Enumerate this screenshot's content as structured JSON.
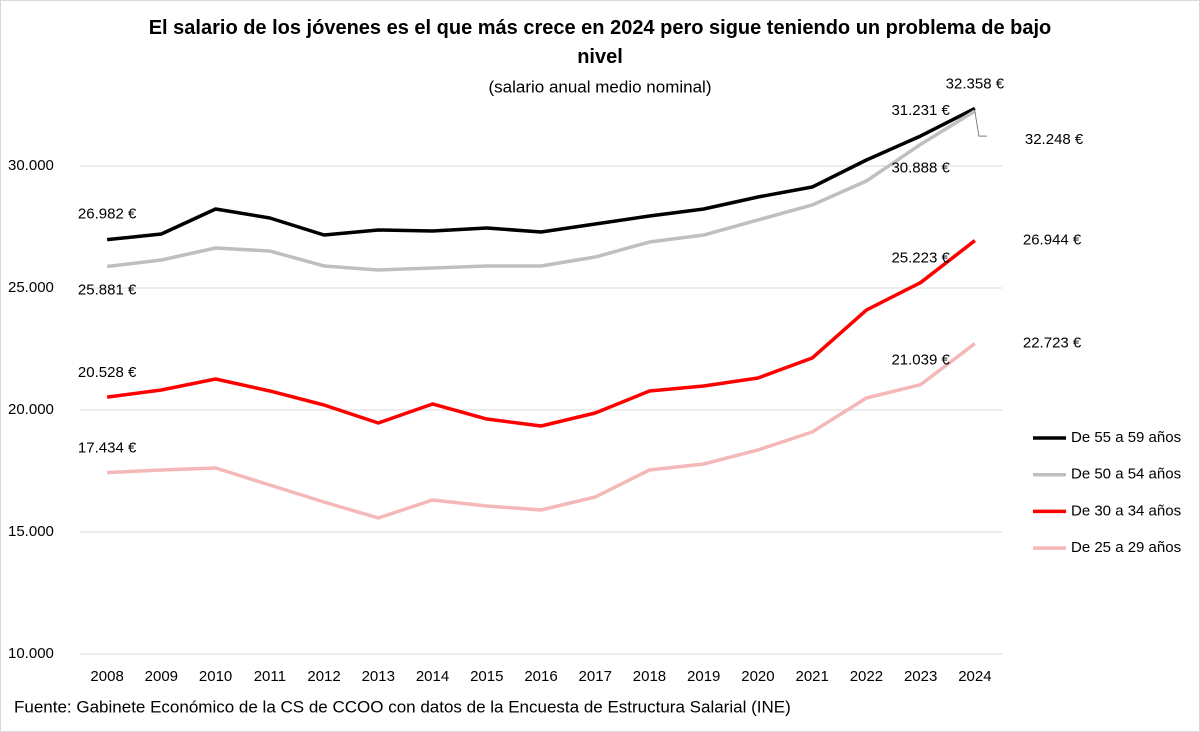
{
  "chart_data": {
    "type": "line",
    "title": "El salario de los jóvenes es el que más crece en 2024 pero sigue teniendo un problema de bajo nivel",
    "subtitle": "(salario anual medio nominal)",
    "source": "Fuente: Gabinete Económico de la CS de CCOO con datos de la Encuesta de Estructura Salarial (INE)",
    "categories": [
      "2008",
      "2009",
      "2010",
      "2011",
      "2012",
      "2013",
      "2014",
      "2015",
      "2016",
      "2017",
      "2018",
      "2019",
      "2020",
      "2021",
      "2022",
      "2023",
      "2024"
    ],
    "ylim": [
      10000,
      35000
    ],
    "yticks": [
      {
        "value": 10000,
        "label": "10.000"
      },
      {
        "value": 15000,
        "label": "15.000"
      },
      {
        "value": 20000,
        "label": "20.000"
      },
      {
        "value": 25000,
        "label": "25.000"
      },
      {
        "value": 30000,
        "label": "30.000"
      }
    ],
    "grid": true,
    "legend": "right",
    "series": [
      {
        "name": "De 55 a 59 años",
        "color": "#000000",
        "values": [
          26982,
          27213,
          28238,
          27869,
          27172,
          27377,
          27336,
          27459,
          27295,
          27623,
          27951,
          28238,
          28730,
          29139,
          30246,
          31231,
          32358
        ],
        "value_labels": [
          "26.982 €",
          null,
          null,
          null,
          null,
          null,
          null,
          null,
          null,
          null,
          null,
          null,
          null,
          null,
          null,
          "31.231 €",
          "32.358 €"
        ]
      },
      {
        "name": "De 50 a 54 años",
        "color": "#bfbfbf",
        "values": [
          25881,
          26148,
          26639,
          26516,
          25902,
          25738,
          25820,
          25902,
          25902,
          26270,
          26885,
          27172,
          27787,
          28402,
          29385,
          30888,
          32248
        ],
        "value_labels": [
          "25.881 €",
          null,
          null,
          null,
          null,
          null,
          null,
          null,
          null,
          null,
          null,
          null,
          null,
          null,
          null,
          "30.888 €",
          "32.248 €"
        ]
      },
      {
        "name": "De 30 a 34 años",
        "color": "#ff0000",
        "values": [
          20528,
          20820,
          21270,
          20779,
          20205,
          19467,
          20246,
          19631,
          19344,
          19877,
          20779,
          20984,
          21311,
          22131,
          24098,
          25223,
          26944
        ],
        "value_labels": [
          "20.528 €",
          null,
          null,
          null,
          null,
          null,
          null,
          null,
          null,
          null,
          null,
          null,
          null,
          null,
          null,
          "25.223 €",
          "26.944 €"
        ]
      },
      {
        "name": "De 25 a 29 años",
        "color": "#f4b8b8",
        "values": [
          17434,
          17541,
          17623,
          16926,
          16230,
          15574,
          16311,
          16066,
          15902,
          16434,
          17541,
          17787,
          18361,
          19098,
          20492,
          21039,
          22723
        ],
        "value_labels": [
          "17.434 €",
          null,
          null,
          null,
          null,
          null,
          null,
          null,
          null,
          null,
          null,
          null,
          null,
          null,
          null,
          "21.039 €",
          "22.723 €"
        ]
      }
    ]
  }
}
